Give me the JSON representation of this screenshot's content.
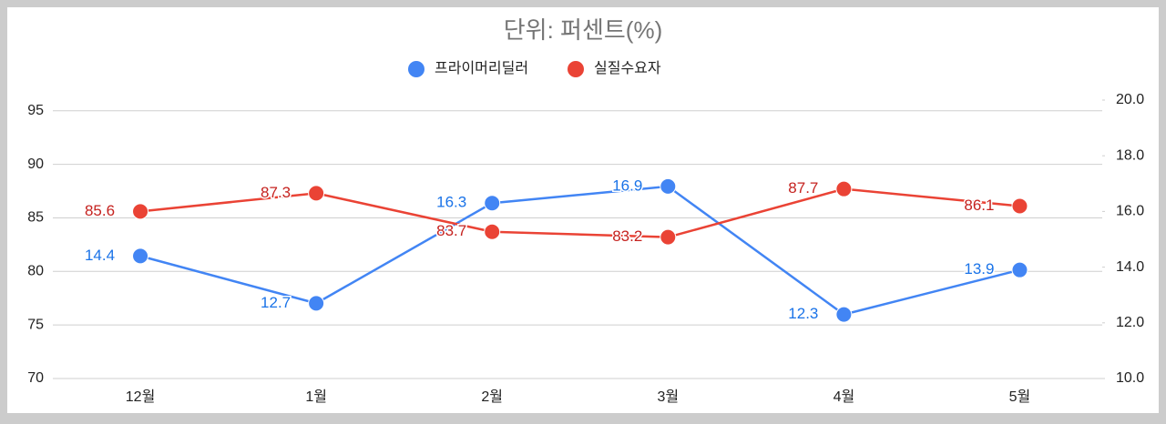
{
  "chart_data": {
    "type": "line",
    "title": "단위: 퍼센트(%)",
    "categories": [
      "12월",
      "1월",
      "2월",
      "3월",
      "4월",
      "5월"
    ],
    "series": [
      {
        "name": "프라이머리딜러",
        "color": "#4285f4",
        "axis": "y2",
        "values": [
          14.4,
          12.7,
          16.3,
          16.9,
          12.3,
          13.9
        ]
      },
      {
        "name": "실질수요자",
        "color": "#ea4335",
        "values": [
          85.6,
          87.3,
          83.7,
          83.2,
          87.7,
          86.1
        ]
      }
    ],
    "ylim": [
      70,
      96
    ],
    "yticks": [
      70,
      75,
      80,
      85,
      90,
      95
    ],
    "y2lim": [
      10,
      20
    ],
    "y2ticks": [
      {
        "value": 10,
        "label": "10.0"
      },
      {
        "value": 12,
        "label": "12.0"
      },
      {
        "value": 14,
        "label": "14.0"
      },
      {
        "value": 16,
        "label": "16.0"
      },
      {
        "value": 18,
        "label": "18.0"
      },
      {
        "value": 20,
        "label": "20.0"
      }
    ],
    "grid": true,
    "legend": "top"
  }
}
